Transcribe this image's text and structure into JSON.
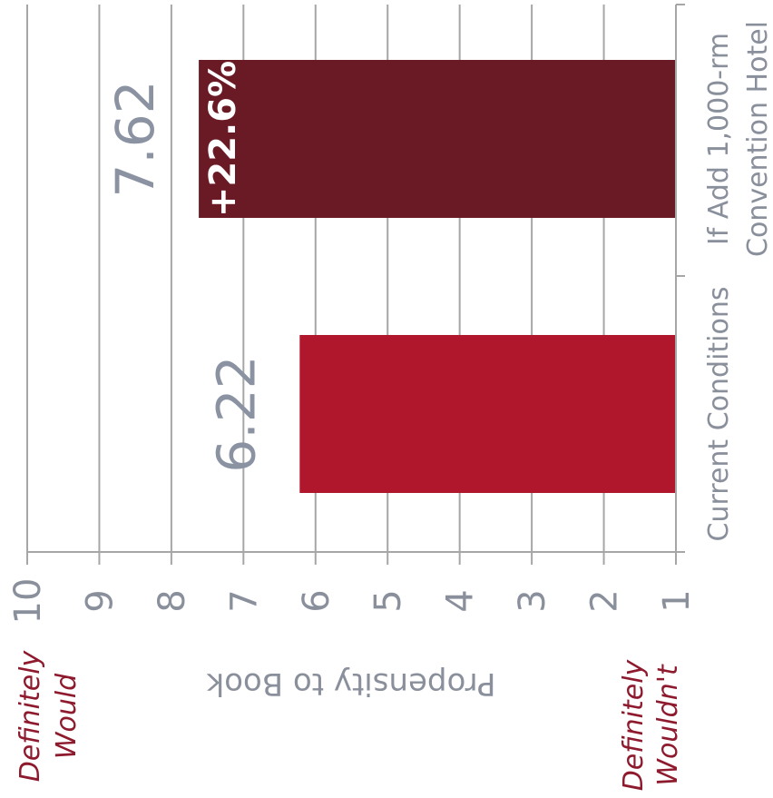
{
  "chart_data": {
    "type": "bar",
    "orientation": "horizontal-rotated",
    "categories": [
      "Current Conditions",
      "If Add 1,000-rm Convention Hotel"
    ],
    "category_lines": [
      [
        "Current Conditions"
      ],
      [
        "If Add 1,000-rm",
        "Convention Hotel"
      ]
    ],
    "values": [
      6.22,
      7.62
    ],
    "value_labels": [
      "6.22",
      "7.62"
    ],
    "annotations": [
      {
        "category": "If Add 1,000-rm Convention Hotel",
        "text": "+22.6%"
      }
    ],
    "ylabel": "Propensity to Book",
    "ylim": [
      1,
      10
    ],
    "ticks": [
      1,
      2,
      3,
      4,
      5,
      6,
      7,
      8,
      9,
      10
    ],
    "scale_anchors": {
      "top": [
        "Definitely",
        "Would"
      ],
      "bottom": [
        "Definitely",
        "Wouldn't"
      ]
    },
    "grid": true,
    "colors": [
      "#b0162c",
      "#6a1a24"
    ]
  }
}
